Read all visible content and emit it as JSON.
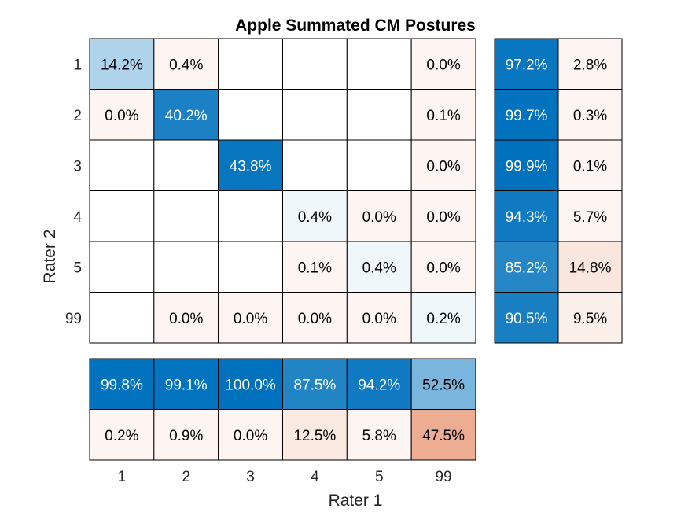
{
  "chart_data": {
    "type": "heatmap",
    "title": "Apple Summated CM Postures",
    "xlabel": "Rater 1",
    "ylabel": "Rater 2",
    "x_categories": [
      "1",
      "2",
      "3",
      "4",
      "5",
      "99"
    ],
    "y_categories": [
      "1",
      "2",
      "3",
      "4",
      "5",
      "99"
    ],
    "matrix": [
      [
        14.2,
        0.4,
        null,
        null,
        null,
        0.0
      ],
      [
        0.0,
        40.2,
        null,
        null,
        null,
        0.1
      ],
      [
        null,
        null,
        43.8,
        null,
        null,
        0.0
      ],
      [
        null,
        null,
        null,
        0.4,
        0.0,
        0.0
      ],
      [
        null,
        null,
        null,
        0.1,
        0.4,
        0.0
      ],
      [
        null,
        0.0,
        0.0,
        0.0,
        0.0,
        0.2
      ]
    ],
    "row_summary": [
      [
        97.2,
        2.8
      ],
      [
        99.7,
        0.3
      ],
      [
        99.9,
        0.1
      ],
      [
        94.3,
        5.7
      ],
      [
        85.2,
        14.8
      ],
      [
        90.5,
        9.5
      ]
    ],
    "column_summary": [
      [
        99.8,
        99.1,
        100.0,
        87.5,
        94.2,
        52.5
      ],
      [
        0.2,
        0.9,
        0.0,
        12.5,
        5.8,
        47.5
      ]
    ],
    "value_format": "percent_1dp",
    "colors": {
      "positive": "#0072bd",
      "negative": "#d95319",
      "neutral": "#ffffff",
      "grid": "#000000"
    }
  }
}
